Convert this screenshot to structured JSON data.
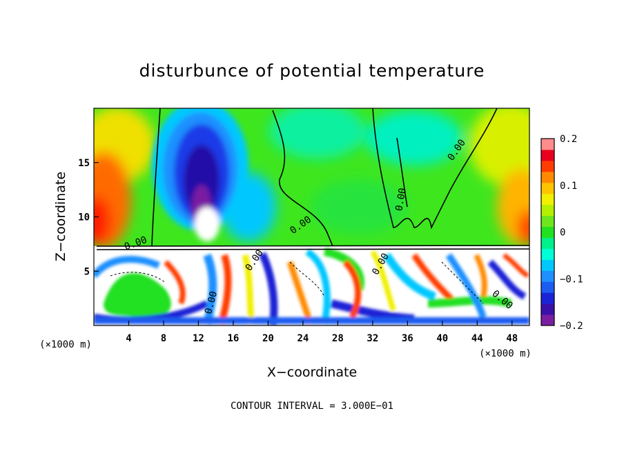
{
  "chart_data": {
    "type": "heatmap",
    "title": "disturbunce of potential temperature",
    "xlabel": "X−coordinate",
    "ylabel": "Z−coordinate",
    "x_unit": "(×1000 m)",
    "xlim": [
      0,
      50
    ],
    "ylim": [
      0,
      20
    ],
    "x_ticks": [
      4,
      8,
      12,
      16,
      20,
      24,
      28,
      32,
      36,
      40,
      44,
      48
    ],
    "y_ticks": [
      5,
      10,
      15
    ],
    "colorbar": {
      "range": [
        -0.2,
        0.2
      ],
      "tick_labels": [
        "0.2",
        "0.1",
        "0",
        "−0.1",
        "−0.2"
      ],
      "tick_values": [
        0.2,
        0.1,
        0,
        -0.1,
        -0.2
      ],
      "colors": [
        "#7a1fa2",
        "#3a10a8",
        "#1a24d6",
        "#1c5cf0",
        "#1e90ff",
        "#00c8ff",
        "#00ffd8",
        "#00f08c",
        "#22e022",
        "#6ee61e",
        "#b4f000",
        "#f0f000",
        "#ffc400",
        "#ff8a00",
        "#ff3c00",
        "#e8001e",
        "#ff8c8c"
      ]
    },
    "contour_labels": [
      "0.00",
      "0.00",
      "0.00",
      "0.00",
      "0.00",
      "0.00",
      "0.00",
      "0.00"
    ],
    "contour_interval_text": "CONTOUR INTERVAL = 3.000E−01"
  }
}
